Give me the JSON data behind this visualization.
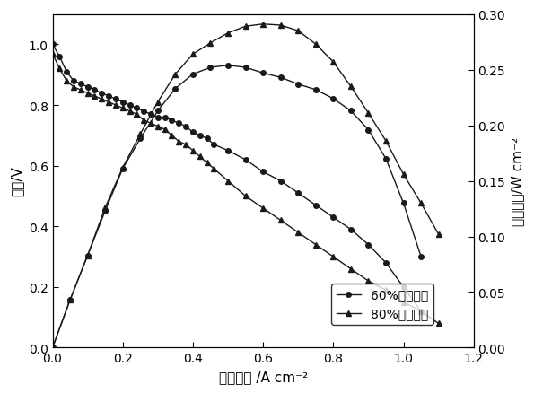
{
  "xlabel": "电流密度 /A cm⁻²",
  "ylabel_left": "电压/V",
  "ylabel_right": "功率密度/W cm⁻²",
  "xlim": [
    0.0,
    1.2
  ],
  "ylim_left": [
    0.0,
    1.1
  ],
  "ylim_right": [
    0.0,
    0.3
  ],
  "legend_60": "60%相对加湿",
  "legend_80": "80%相对加湿",
  "voltage_60_x": [
    0.0,
    0.02,
    0.04,
    0.06,
    0.08,
    0.1,
    0.12,
    0.14,
    0.16,
    0.18,
    0.2,
    0.22,
    0.24,
    0.26,
    0.28,
    0.3,
    0.32,
    0.34,
    0.36,
    0.38,
    0.4,
    0.42,
    0.44,
    0.46,
    0.5,
    0.55,
    0.6,
    0.65,
    0.7,
    0.75,
    0.8,
    0.85,
    0.9,
    0.95,
    1.0,
    1.05
  ],
  "voltage_60_y": [
    1.0,
    0.96,
    0.91,
    0.88,
    0.87,
    0.86,
    0.85,
    0.84,
    0.83,
    0.82,
    0.81,
    0.8,
    0.79,
    0.78,
    0.77,
    0.76,
    0.76,
    0.75,
    0.74,
    0.73,
    0.71,
    0.7,
    0.69,
    0.67,
    0.65,
    0.62,
    0.58,
    0.55,
    0.51,
    0.47,
    0.43,
    0.39,
    0.34,
    0.28,
    0.2,
    0.12
  ],
  "voltage_80_x": [
    0.0,
    0.02,
    0.04,
    0.06,
    0.08,
    0.1,
    0.12,
    0.14,
    0.16,
    0.18,
    0.2,
    0.22,
    0.24,
    0.26,
    0.28,
    0.3,
    0.32,
    0.34,
    0.36,
    0.38,
    0.4,
    0.42,
    0.44,
    0.46,
    0.5,
    0.55,
    0.6,
    0.65,
    0.7,
    0.75,
    0.8,
    0.85,
    0.9,
    0.95,
    1.0,
    1.05,
    1.1
  ],
  "voltage_80_y": [
    0.97,
    0.92,
    0.88,
    0.86,
    0.85,
    0.84,
    0.83,
    0.82,
    0.81,
    0.8,
    0.79,
    0.78,
    0.77,
    0.75,
    0.74,
    0.73,
    0.72,
    0.7,
    0.68,
    0.67,
    0.65,
    0.63,
    0.61,
    0.59,
    0.55,
    0.5,
    0.46,
    0.42,
    0.38,
    0.34,
    0.3,
    0.26,
    0.22,
    0.19,
    0.15,
    0.12,
    0.08
  ],
  "power_60_x": [
    0.0,
    0.05,
    0.1,
    0.15,
    0.2,
    0.25,
    0.3,
    0.35,
    0.4,
    0.45,
    0.5,
    0.55,
    0.6,
    0.65,
    0.7,
    0.75,
    0.8,
    0.85,
    0.9,
    0.95,
    1.0,
    1.05
  ],
  "power_60_y": [
    0.0,
    0.043,
    0.083,
    0.123,
    0.161,
    0.188,
    0.213,
    0.233,
    0.246,
    0.252,
    0.254,
    0.252,
    0.247,
    0.243,
    0.237,
    0.232,
    0.224,
    0.213,
    0.196,
    0.17,
    0.13,
    0.082
  ],
  "power_80_x": [
    0.0,
    0.05,
    0.1,
    0.15,
    0.2,
    0.25,
    0.3,
    0.35,
    0.4,
    0.45,
    0.5,
    0.55,
    0.6,
    0.65,
    0.7,
    0.75,
    0.8,
    0.85,
    0.9,
    0.95,
    1.0,
    1.05,
    1.1
  ],
  "power_80_y": [
    0.0,
    0.043,
    0.083,
    0.126,
    0.162,
    0.192,
    0.221,
    0.246,
    0.264,
    0.274,
    0.283,
    0.289,
    0.291,
    0.29,
    0.285,
    0.273,
    0.257,
    0.235,
    0.211,
    0.186,
    0.156,
    0.13,
    0.102
  ],
  "line_color": "#1a1a1a",
  "marker_circle": "o",
  "marker_triangle": "^",
  "marker_size": 4,
  "line_width": 1.0
}
